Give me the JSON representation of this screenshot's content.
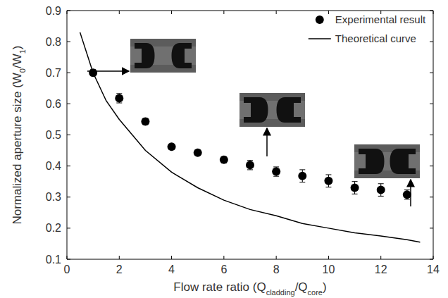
{
  "chart_data": {
    "type": "scatter",
    "xlabel": "Flow rate ratio (Qcladding/Qcore)",
    "ylabel": "Normalized aperture size (W0/W1)",
    "xlim": [
      0,
      14
    ],
    "xticks": [
      0,
      2,
      4,
      6,
      8,
      10,
      12,
      14
    ],
    "ylim": [
      0.1,
      0.9
    ],
    "yticks": [
      0.1,
      0.2,
      0.3,
      0.4,
      0.5,
      0.6,
      0.7,
      0.8,
      0.9
    ],
    "grid": false,
    "legend": "upper right",
    "series": [
      {
        "name": "Experimental result",
        "type": "scatter",
        "marker": "circle",
        "color": "#000000",
        "x": [
          1,
          2,
          3,
          4,
          5,
          6,
          7,
          8,
          9,
          10,
          11,
          12,
          13
        ],
        "values": [
          0.7,
          0.618,
          0.543,
          0.462,
          0.443,
          0.42,
          0.403,
          0.382,
          0.368,
          0.352,
          0.33,
          0.323,
          0.308
        ],
        "errors": [
          0.01,
          0.015,
          0.01,
          0.008,
          0.008,
          0.01,
          0.015,
          0.015,
          0.02,
          0.02,
          0.02,
          0.02,
          0.015
        ]
      },
      {
        "name": "Theoretical curve",
        "type": "line",
        "line_style": "solid",
        "color": "#000000",
        "x": [
          0.5,
          1,
          1.5,
          2,
          3,
          4,
          5,
          6,
          7,
          8,
          9,
          10,
          11,
          12,
          13,
          13.5
        ],
        "values": [
          0.83,
          0.7,
          0.61,
          0.55,
          0.45,
          0.38,
          0.33,
          0.29,
          0.26,
          0.24,
          0.215,
          0.2,
          0.185,
          0.175,
          0.163,
          0.155
        ]
      }
    ]
  }
}
